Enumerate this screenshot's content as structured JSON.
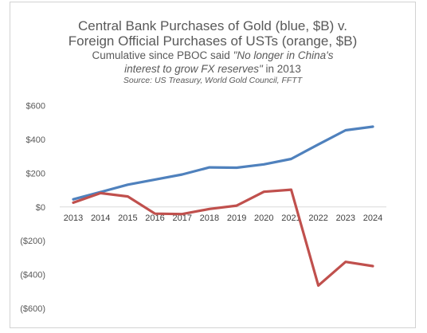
{
  "title": {
    "line1": "Central Bank Purchases of Gold (blue, $B) v.",
    "line2": "Foreign Official Purchases of USTs (orange, $B)",
    "subtitle_prefix": "Cumulative since PBOC said ",
    "subtitle_quote_line1": "\"No longer in China's",
    "subtitle_quote_line2": "interest to grow FX reserves\"",
    "subtitle_suffix": " in 2013",
    "source": "Source: US Treasury, World Gold Council, FFTT"
  },
  "colors": {
    "gold_series": "#4f81bd",
    "ust_series": "#c0504d",
    "zero_line": "#d9d9d9",
    "text": "#595959"
  },
  "chart_data": {
    "type": "line",
    "x": [
      "2013",
      "2014",
      "2015",
      "2016",
      "2017",
      "2018",
      "2019",
      "2020",
      "2021",
      "2022",
      "2023",
      "2024"
    ],
    "y_ticks": [
      600,
      400,
      200,
      0,
      -200,
      -400,
      -600
    ],
    "y_tick_labels": [
      "$600",
      "$400",
      "$200",
      "$0",
      "($200)",
      "($400)",
      "($600)"
    ],
    "ylim": [
      -600,
      600
    ],
    "grid": false,
    "legend": "none",
    "series": [
      {
        "key": "gold",
        "values": [
          45,
          88,
          132,
          162,
          192,
          234,
          232,
          252,
          284,
          370,
          454,
          475
        ]
      },
      {
        "key": "ust",
        "values": [
          25,
          82,
          62,
          -40,
          -42,
          -12,
          8,
          90,
          102,
          -465,
          -325,
          -350
        ]
      }
    ]
  }
}
